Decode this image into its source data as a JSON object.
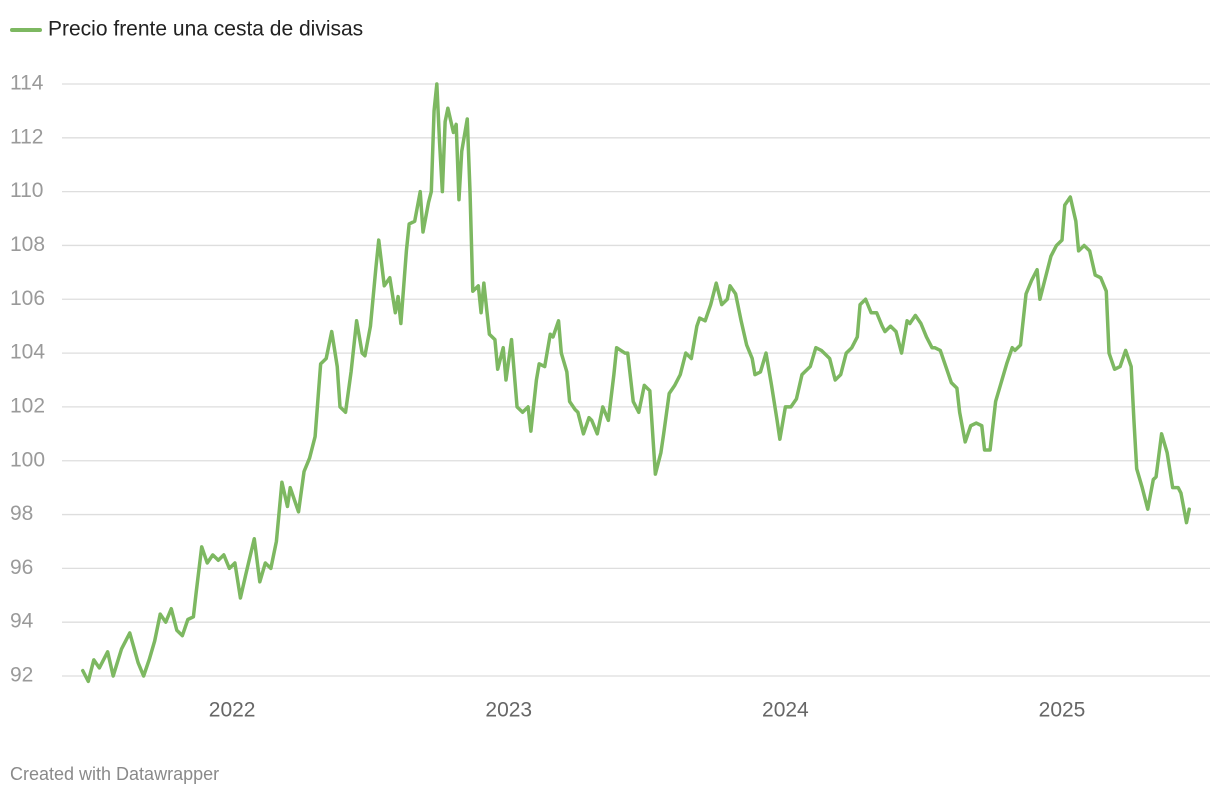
{
  "chart_data": {
    "type": "line",
    "credit": "Created with Datawrapper",
    "x": [
      2021.46,
      2021.48,
      2021.5,
      2021.52,
      2021.55,
      2021.57,
      2021.6,
      2021.63,
      2021.66,
      2021.68,
      2021.7,
      2021.72,
      2021.74,
      2021.76,
      2021.78,
      2021.8,
      2021.82,
      2021.84,
      2021.86,
      2021.87,
      2021.89,
      2021.91,
      2021.93,
      2021.95,
      2021.97,
      2021.99,
      2022.01,
      2022.03,
      2022.05,
      2022.08,
      2022.1,
      2022.12,
      2022.14,
      2022.16,
      2022.18,
      2022.2,
      2022.21,
      2022.24,
      2022.26,
      2022.28,
      2022.3,
      2022.32,
      2022.34,
      2022.36,
      2022.38,
      2022.39,
      2022.41,
      2022.43,
      2022.45,
      2022.47,
      2022.48,
      2022.5,
      2022.52,
      2022.53,
      2022.55,
      2022.57,
      2022.59,
      2022.6,
      2022.61,
      2022.63,
      2022.64,
      2022.66,
      2022.68,
      2022.69,
      2022.71,
      2022.72,
      2022.73,
      2022.74,
      2022.75,
      2022.76,
      2022.77,
      2022.78,
      2022.8,
      2022.81,
      2022.82,
      2022.83,
      2022.85,
      2022.86,
      2022.87,
      2022.89,
      2022.9,
      2022.91,
      2022.93,
      2022.95,
      2022.96,
      2022.98,
      2022.99,
      2023.01,
      2023.03,
      2023.05,
      2023.07,
      2023.08,
      2023.1,
      2023.11,
      2023.13,
      2023.15,
      2023.16,
      2023.18,
      2023.19,
      2023.21,
      2023.22,
      2023.24,
      2023.25,
      2023.27,
      2023.29,
      2023.3,
      2023.32,
      2023.34,
      2023.36,
      2023.38,
      2023.39,
      2023.42,
      2023.43,
      2023.45,
      2023.47,
      2023.49,
      2023.51,
      2023.53,
      2023.55,
      2023.56,
      2023.58,
      2023.6,
      2023.62,
      2023.64,
      2023.66,
      2023.68,
      2023.69,
      2023.71,
      2023.73,
      2023.75,
      2023.77,
      2023.79,
      2023.8,
      2023.82,
      2023.84,
      2023.86,
      2023.88,
      2023.89,
      2023.91,
      2023.93,
      2023.95,
      2023.97,
      2023.98,
      2024.0,
      2024.02,
      2024.04,
      2024.06,
      2024.07,
      2024.09,
      2024.11,
      2024.13,
      2024.15,
      2024.16,
      2024.18,
      2024.2,
      2024.22,
      2024.24,
      2024.26,
      2024.27,
      2024.29,
      2024.31,
      2024.33,
      2024.35,
      2024.36,
      2024.38,
      2024.4,
      2024.42,
      2024.44,
      2024.45,
      2024.47,
      2024.49,
      2024.51,
      2024.53,
      2024.54,
      2024.56,
      2024.58,
      2024.6,
      2024.62,
      2024.63,
      2024.65,
      2024.67,
      2024.69,
      2024.71,
      2024.72,
      2024.74,
      2024.76,
      2024.78,
      2024.8,
      2024.82,
      2024.83,
      2024.85,
      2024.87,
      2024.89,
      2024.91,
      2024.92,
      2024.94,
      2024.96,
      2024.98,
      2025.0,
      2025.01,
      2025.03,
      2025.05,
      2025.06,
      2025.08,
      2025.1,
      2025.12,
      2025.14,
      2025.16,
      2025.17,
      2025.19,
      2025.21,
      2025.23,
      2025.25,
      2025.26,
      2025.27,
      2025.29,
      2025.31,
      2025.33,
      2025.34,
      2025.36,
      2025.38,
      2025.4,
      2025.42,
      2025.43,
      2025.45,
      2025.46
    ],
    "series": [
      {
        "name": "Precio frente una cesta de divisas",
        "color": "#7db861",
        "values": [
          92.2,
          91.8,
          92.6,
          92.3,
          92.9,
          92.0,
          93.0,
          93.6,
          92.5,
          92.0,
          92.6,
          93.3,
          94.3,
          94.0,
          94.5,
          93.7,
          93.5,
          94.1,
          94.2,
          95.1,
          96.8,
          96.2,
          96.5,
          96.3,
          96.5,
          96.0,
          96.2,
          94.9,
          95.8,
          97.1,
          95.5,
          96.2,
          96.0,
          97.0,
          99.2,
          98.3,
          99.0,
          98.1,
          99.6,
          100.1,
          100.9,
          103.6,
          103.8,
          104.8,
          103.5,
          102.0,
          101.8,
          103.3,
          105.2,
          104.0,
          103.9,
          105.0,
          107.2,
          108.2,
          106.5,
          106.8,
          105.5,
          106.1,
          105.1,
          107.8,
          108.8,
          108.9,
          110.0,
          108.5,
          109.6,
          110.0,
          113.0,
          114.0,
          111.8,
          110.0,
          112.6,
          113.1,
          112.2,
          112.5,
          109.7,
          111.5,
          112.7,
          110.0,
          106.3,
          106.5,
          105.5,
          106.6,
          104.7,
          104.5,
          103.4,
          104.2,
          103.0,
          104.5,
          102.0,
          101.8,
          102.0,
          101.1,
          103.0,
          103.6,
          103.5,
          104.7,
          104.6,
          105.2,
          104.0,
          103.3,
          102.2,
          101.9,
          101.8,
          101.0,
          101.6,
          101.5,
          101.0,
          102.0,
          101.5,
          103.2,
          104.2,
          104.0,
          104.0,
          102.2,
          101.8,
          102.8,
          102.6,
          99.5,
          100.3,
          101.0,
          102.5,
          102.8,
          103.2,
          104.0,
          103.8,
          105.0,
          105.3,
          105.2,
          105.8,
          106.6,
          105.8,
          106.0,
          106.5,
          106.2,
          105.2,
          104.3,
          103.8,
          103.2,
          103.3,
          104.0,
          102.8,
          101.5,
          100.8,
          102.0,
          102.0,
          102.3,
          103.2,
          103.3,
          103.5,
          104.2,
          104.1,
          103.9,
          103.8,
          103.0,
          103.2,
          104.0,
          104.2,
          104.6,
          105.8,
          106.0,
          105.5,
          105.5,
          105.0,
          104.8,
          105.0,
          104.8,
          104.0,
          105.2,
          105.1,
          105.4,
          105.1,
          104.6,
          104.2,
          104.2,
          104.1,
          103.5,
          102.9,
          102.7,
          101.8,
          100.7,
          101.3,
          101.4,
          101.3,
          100.4,
          100.4,
          102.2,
          102.9,
          103.6,
          104.2,
          104.1,
          104.3,
          106.2,
          106.7,
          107.1,
          106.0,
          106.8,
          107.6,
          108.0,
          108.2,
          109.5,
          109.8,
          108.9,
          107.8,
          108.0,
          107.8,
          106.9,
          106.8,
          106.3,
          104.0,
          103.4,
          103.5,
          104.1,
          103.5,
          101.5,
          99.7,
          99.0,
          98.2,
          99.3,
          99.4,
          101.0,
          100.3,
          99.0,
          99.0,
          98.8,
          97.7,
          98.2
        ]
      }
    ],
    "xlim": [
      2021.385,
      2025.535
    ],
    "xticks": [
      2022,
      2023,
      2024,
      2025
    ],
    "ylim": [
      92,
      114
    ],
    "yticks": [
      92,
      94,
      96,
      98,
      100,
      102,
      104,
      106,
      108,
      110,
      112,
      114
    ],
    "grid": true,
    "legend": "top-left"
  }
}
